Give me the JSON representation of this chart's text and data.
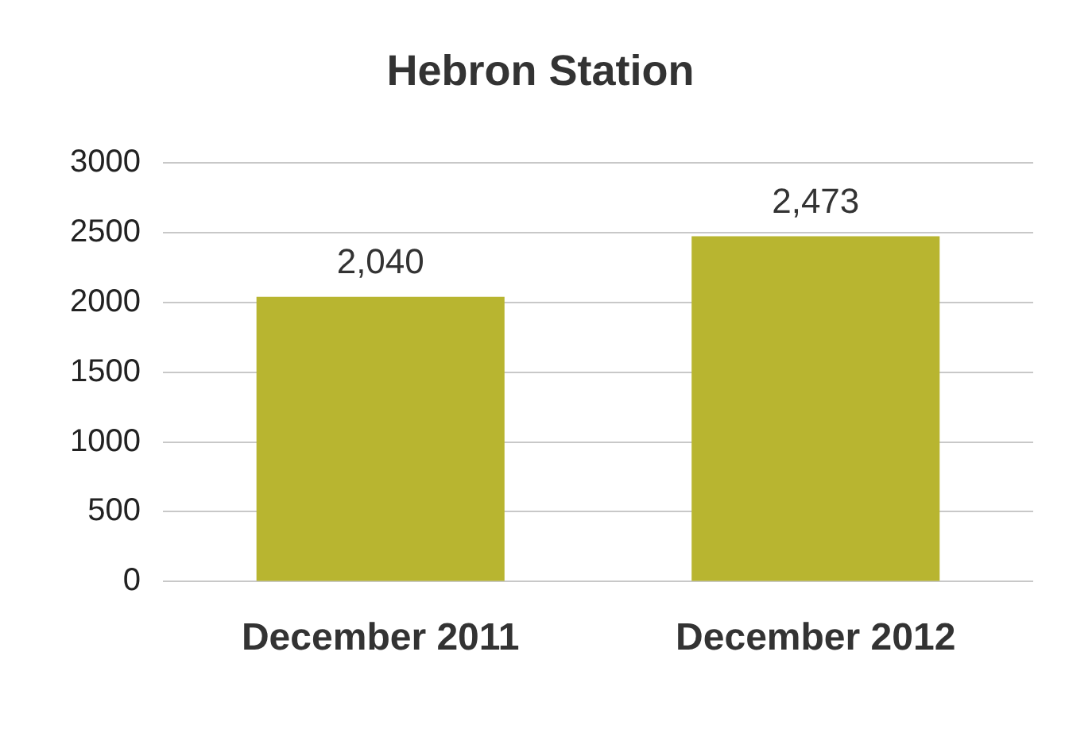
{
  "chart_data": {
    "type": "bar",
    "title": "Hebron Station",
    "categories": [
      "December 2011",
      "December 2012"
    ],
    "values": [
      2040,
      2473
    ],
    "value_labels": [
      "2,040",
      "2,473"
    ],
    "color": "#b8b530",
    "ylim": [
      0,
      3000
    ],
    "yticks": [
      0,
      500,
      1000,
      1500,
      2000,
      2500,
      3000
    ],
    "grid": "y",
    "legend": false
  }
}
